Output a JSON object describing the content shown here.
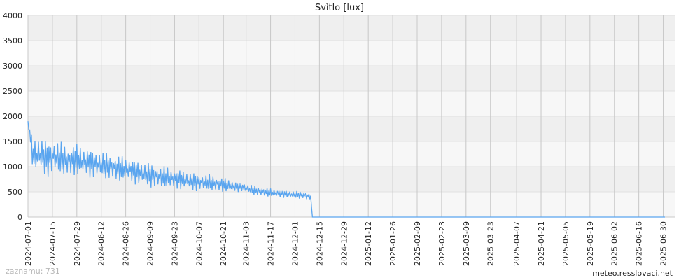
{
  "chart_data": {
    "type": "line",
    "title": "Svìtlo [lux]",
    "xlabel": "",
    "ylabel": "",
    "x_range": [
      "2024-07-01",
      "2025-07-07"
    ],
    "ylim": [
      0,
      4000
    ],
    "y_ticks": [
      0,
      500,
      1000,
      1500,
      2000,
      2500,
      3000,
      3500,
      4000
    ],
    "x_ticks": [
      "2024-07-01",
      "2024-07-15",
      "2024-07-29",
      "2024-08-12",
      "2024-08-26",
      "2024-09-09",
      "2024-09-23",
      "2024-10-07",
      "2024-10-21",
      "2024-11-03",
      "2024-11-17",
      "2024-12-01",
      "2024-12-15",
      "2024-12-29",
      "2025-01-12",
      "2025-01-26",
      "2025-02-09",
      "2025-02-23",
      "2025-03-09",
      "2025-03-23",
      "2025-04-07",
      "2025-04-21",
      "2025-05-05",
      "2025-05-19",
      "2025-06-02",
      "2025-06-16",
      "2025-06-30"
    ],
    "grid": true,
    "series": [
      {
        "color": "#5aa5ef",
        "x": [
          "2024-07-01",
          "2024-07-04",
          "2024-07-08",
          "2024-07-12",
          "2024-07-16",
          "2024-07-20",
          "2024-07-24",
          "2024-07-28",
          "2024-08-01",
          "2024-08-05",
          "2024-08-09",
          "2024-08-13",
          "2024-08-17",
          "2024-08-21",
          "2024-08-25",
          "2024-08-29",
          "2024-09-02",
          "2024-09-06",
          "2024-09-10",
          "2024-09-14",
          "2024-09-18",
          "2024-09-22",
          "2024-09-26",
          "2024-09-30",
          "2024-10-04",
          "2024-10-08",
          "2024-10-12",
          "2024-10-16",
          "2024-10-20",
          "2024-10-24",
          "2024-10-28",
          "2024-11-01",
          "2024-11-05",
          "2024-11-09",
          "2024-11-13",
          "2024-11-17",
          "2024-11-21",
          "2024-11-25",
          "2024-11-29",
          "2024-12-03",
          "2024-12-07",
          "2024-12-10",
          "2024-12-11",
          "2024-12-20",
          "2025-01-15",
          "2025-02-15",
          "2025-03-15",
          "2025-04-15",
          "2025-05-15",
          "2025-06-15",
          "2025-07-01"
        ],
        "y": [
          1900,
          1200,
          1250,
          1150,
          1200,
          1150,
          1100,
          1150,
          1100,
          1080,
          1050,
          1020,
          1000,
          960,
          950,
          930,
          880,
          850,
          820,
          800,
          780,
          760,
          750,
          720,
          700,
          690,
          680,
          660,
          650,
          620,
          600,
          600,
          550,
          520,
          500,
          480,
          470,
          460,
          450,
          440,
          430,
          400,
          0,
          0,
          0,
          0,
          0,
          0,
          0,
          0,
          0
        ],
        "band": [
          0,
          300,
          350,
          330,
          320,
          300,
          300,
          300,
          280,
          260,
          260,
          250,
          240,
          240,
          230,
          220,
          220,
          230,
          220,
          210,
          200,
          190,
          180,
          170,
          170,
          160,
          150,
          150,
          140,
          120,
          100,
          80,
          90,
          90,
          80,
          80,
          70,
          70,
          70,
          70,
          60,
          60,
          0,
          0,
          0,
          0,
          0,
          0,
          0,
          0,
          0
        ]
      }
    ]
  },
  "footer": {
    "records": "zaznamu: 731",
    "site": "meteo.resslovaci.net"
  }
}
